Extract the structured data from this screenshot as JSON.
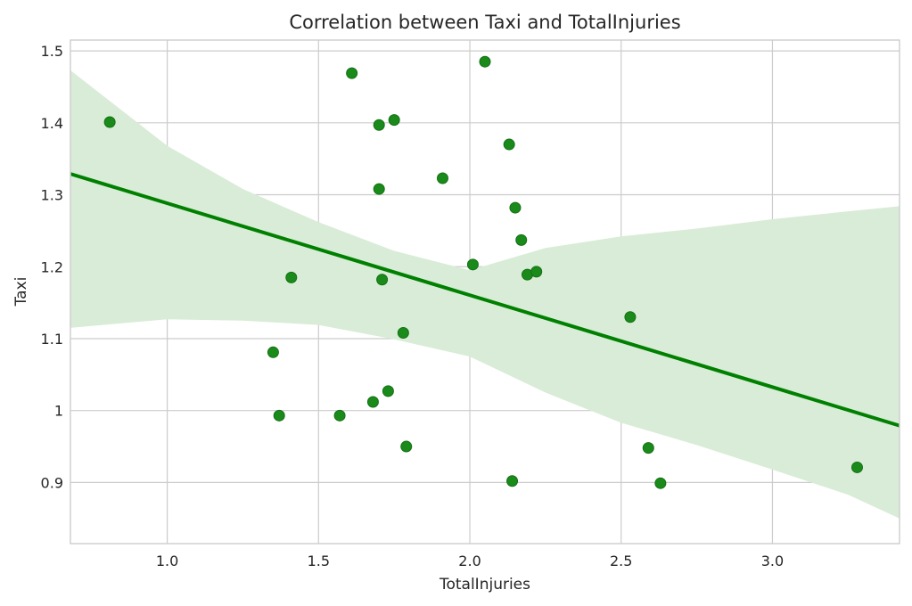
{
  "chart_data": {
    "type": "scatter",
    "title": "Correlation between Taxi and TotalInjuries",
    "xlabel": "TotalInjuries",
    "ylabel": "Taxi",
    "xlim": [
      0.68,
      3.42
    ],
    "ylim": [
      0.815,
      1.515
    ],
    "xticks": [
      1.0,
      1.5,
      2.0,
      2.5,
      3.0
    ],
    "xtick_labels": [
      "1.0",
      "1.5",
      "2.0",
      "2.5",
      "3.0"
    ],
    "yticks": [
      0.9,
      1.0,
      1.1,
      1.2,
      1.3,
      1.4,
      1.5
    ],
    "ytick_labels": [
      "0.9",
      "1",
      "1.1",
      "1.2",
      "1.3",
      "1.4",
      "1.5"
    ],
    "grid": true,
    "colors": {
      "points": "#1a8a1a",
      "line": "#008000",
      "band": "#d9ecd7"
    },
    "points": [
      {
        "x": 0.81,
        "y": 1.401
      },
      {
        "x": 1.35,
        "y": 1.081
      },
      {
        "x": 1.37,
        "y": 0.993
      },
      {
        "x": 1.41,
        "y": 1.185
      },
      {
        "x": 1.57,
        "y": 0.993
      },
      {
        "x": 1.61,
        "y": 1.469
      },
      {
        "x": 1.68,
        "y": 1.012
      },
      {
        "x": 1.7,
        "y": 1.397
      },
      {
        "x": 1.7,
        "y": 1.308
      },
      {
        "x": 1.71,
        "y": 1.182
      },
      {
        "x": 1.73,
        "y": 1.027
      },
      {
        "x": 1.75,
        "y": 1.404
      },
      {
        "x": 1.78,
        "y": 1.108
      },
      {
        "x": 1.79,
        "y": 0.95
      },
      {
        "x": 1.91,
        "y": 1.323
      },
      {
        "x": 2.01,
        "y": 1.203
      },
      {
        "x": 2.05,
        "y": 1.485
      },
      {
        "x": 2.13,
        "y": 1.37
      },
      {
        "x": 2.14,
        "y": 0.902
      },
      {
        "x": 2.15,
        "y": 1.282
      },
      {
        "x": 2.17,
        "y": 1.237
      },
      {
        "x": 2.19,
        "y": 1.189
      },
      {
        "x": 2.22,
        "y": 1.193
      },
      {
        "x": 2.53,
        "y": 1.13
      },
      {
        "x": 2.59,
        "y": 0.948
      },
      {
        "x": 2.63,
        "y": 0.899
      },
      {
        "x": 3.28,
        "y": 0.921
      }
    ],
    "regression": {
      "x": [
        0.68,
        3.42
      ],
      "y": [
        1.329,
        0.979
      ]
    },
    "confidence_band": {
      "x": [
        0.68,
        1.0,
        1.25,
        1.5,
        1.75,
        2.0,
        2.25,
        2.5,
        2.75,
        3.0,
        3.25,
        3.42
      ],
      "upper": [
        1.473,
        1.368,
        1.308,
        1.262,
        1.222,
        1.195,
        1.226,
        1.242,
        1.253,
        1.266,
        1.277,
        1.284
      ],
      "lower": [
        1.115,
        1.127,
        1.125,
        1.119,
        1.099,
        1.075,
        1.025,
        0.983,
        0.952,
        0.918,
        0.883,
        0.85
      ]
    }
  }
}
